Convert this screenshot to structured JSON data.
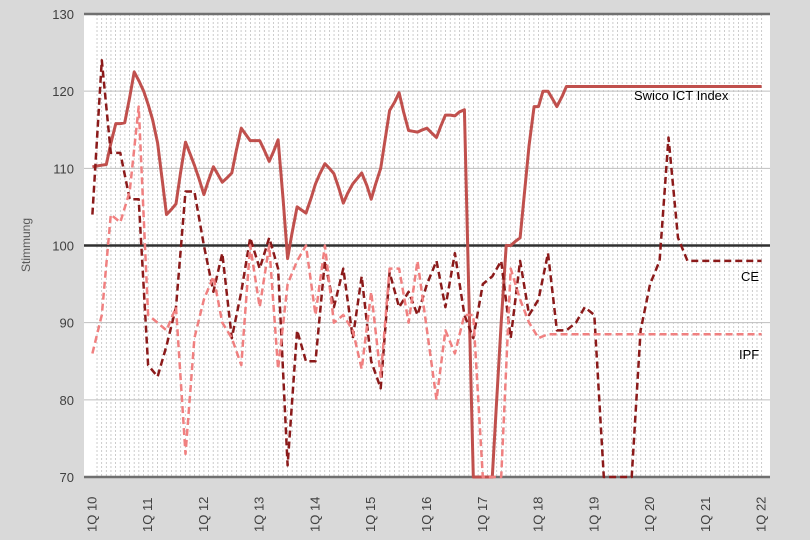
{
  "chart_data": {
    "type": "line",
    "ylabel": "Stimmung",
    "ylim": [
      70,
      130
    ],
    "yticks": [
      70,
      80,
      90,
      100,
      110,
      120,
      130
    ],
    "reference_line": 100,
    "grid": true,
    "x_tick_labels": [
      "1Q 10",
      "1Q 11",
      "1Q 12",
      "1Q 13",
      "1Q 14",
      "1Q 15",
      "1Q 16",
      "1Q 17",
      "1Q 18",
      "1Q 19",
      "1Q 20",
      "1Q 21",
      "1Q 22"
    ],
    "x_tick_values": [
      2010,
      2011,
      2012,
      2013,
      2014,
      2015,
      2016,
      2017,
      2018,
      2019,
      2020,
      2021,
      2022
    ],
    "series": [
      {
        "name": "Swico ICT Index",
        "color": "#c0504d",
        "style": "solid",
        "x": [
          2010.0,
          2010.08,
          2010.17,
          2010.25,
          2010.33,
          2010.42,
          2010.5,
          2010.58,
          2010.67,
          2010.75,
          2010.83,
          2010.92,
          2011.0,
          2011.08,
          2011.17,
          2011.25,
          2011.33,
          2011.42,
          2011.5,
          2011.58,
          2011.67,
          2011.75,
          2011.83,
          2011.92,
          2012.0,
          2012.08,
          2012.17,
          2012.25,
          2012.33,
          2012.42,
          2012.5,
          2012.58,
          2012.67,
          2012.75,
          2012.83,
          2012.92,
          2013.0,
          2013.08,
          2013.17,
          2013.25,
          2013.33,
          2013.42,
          2013.5,
          2013.58,
          2013.67,
          2013.75,
          2013.83,
          2013.92,
          2014.0,
          2014.08,
          2014.17,
          2014.25,
          2014.33,
          2014.42,
          2014.5,
          2014.58,
          2014.67,
          2014.75,
          2014.83,
          2014.92,
          2015.0,
          2015.08,
          2015.17,
          2015.25,
          2015.33,
          2015.42,
          2015.5,
          2015.58,
          2015.67,
          2015.75,
          2015.83,
          2015.92,
          2016.0,
          2016.08,
          2016.17,
          2016.25,
          2016.33,
          2016.42,
          2016.5,
          2016.58,
          2016.67,
          2016.75,
          2016.83,
          2016.92,
          2017.0,
          2017.08,
          2017.17,
          2017.25,
          2017.33,
          2017.42,
          2017.5,
          2017.58,
          2017.67,
          2017.75,
          2017.83,
          2017.92,
          2018.0,
          2018.08,
          2018.17,
          2018.25,
          2018.33,
          2018.42,
          2018.5,
          2018.58,
          2018.67,
          2018.75,
          2018.83,
          2018.92,
          2019.0,
          2019.08,
          2019.17,
          2019.25,
          2019.33,
          2019.42,
          2019.5,
          2019.58,
          2019.67,
          2019.75,
          2019.83,
          2019.92,
          2020.0,
          2020.08,
          2020.17,
          2020.25,
          2020.33,
          2020.42,
          2020.5,
          2020.58,
          2020.67,
          2020.75,
          2020.83,
          2020.92,
          2021.0,
          2021.08,
          2021.17,
          2021.25,
          2021.33,
          2021.42,
          2021.5,
          2021.58,
          2021.67,
          2021.75,
          2021.83,
          2021.92,
          2022.0
        ],
        "y": [
          110.2,
          110.3,
          110.4,
          110.5,
          113.2,
          115.8,
          115.8,
          115.9,
          119.2,
          122.5,
          121.4,
          120.0,
          118.3,
          116.3,
          113.3,
          108.6,
          104.0,
          104.7,
          105.4,
          109.4,
          113.4,
          111.9,
          110.4,
          108.5,
          106.6,
          108.4,
          110.2,
          109.2,
          108.2,
          108.8,
          109.4,
          112.3,
          115.2,
          114.4,
          113.6,
          113.6,
          113.6,
          112.4,
          110.9,
          112.2,
          113.7,
          106.0,
          98.3,
          101.6,
          105.0,
          104.6,
          104.2,
          106.1,
          108.0,
          109.3,
          110.6,
          110.0,
          109.3,
          107.4,
          105.5,
          106.8,
          108.0,
          108.7,
          109.4,
          107.8,
          106.0,
          108.0,
          110.0,
          113.8,
          117.5,
          118.6,
          119.8,
          117.3,
          114.9,
          114.8,
          114.7,
          115.0,
          115.2,
          114.6,
          114.0,
          115.5,
          116.9,
          116.9,
          116.8,
          117.3,
          117.6,
          93.8,
          70.0,
          70.0,
          70.0,
          70.0,
          70.0,
          80.0,
          90.0,
          100.0,
          100.0,
          100.5,
          101.0,
          107.0,
          113.0,
          118.0,
          118.0,
          120.0,
          120.0,
          119.0,
          118.0,
          119.3,
          120.6,
          120.6,
          120.6,
          120.6,
          120.6,
          120.6,
          120.6,
          120.6,
          120.6,
          120.6,
          120.6,
          120.6,
          120.6,
          120.6,
          120.6,
          120.6,
          120.6,
          120.6,
          120.6,
          120.6,
          120.6,
          120.6,
          120.6,
          120.6,
          120.6,
          120.6,
          120.6,
          120.6,
          120.6,
          120.6,
          120.6,
          120.6,
          120.6,
          120.6,
          120.6,
          120.6,
          120.6,
          120.6,
          120.6,
          120.6,
          120.6,
          120.6,
          120.6
        ]
      },
      {
        "name": "CE",
        "color": "#8b1a1a",
        "style": "dashed",
        "x": [
          2010.0,
          2010.17,
          2010.33,
          2010.5,
          2010.67,
          2010.83,
          2011.0,
          2011.17,
          2011.33,
          2011.5,
          2011.67,
          2011.83,
          2012.0,
          2012.17,
          2012.33,
          2012.5,
          2012.67,
          2012.83,
          2013.0,
          2013.17,
          2013.33,
          2013.5,
          2013.67,
          2013.83,
          2014.0,
          2014.17,
          2014.33,
          2014.5,
          2014.67,
          2014.83,
          2015.0,
          2015.17,
          2015.33,
          2015.5,
          2015.67,
          2015.83,
          2016.0,
          2016.17,
          2016.33,
          2016.5,
          2016.67,
          2016.83,
          2017.0,
          2017.17,
          2017.33,
          2017.5,
          2017.67,
          2017.83,
          2018.0,
          2018.17,
          2018.33,
          2018.5,
          2018.67,
          2018.83,
          2019.0,
          2019.17,
          2019.33,
          2019.5,
          2019.67,
          2019.83,
          2020.0,
          2020.17,
          2020.33,
          2020.5,
          2020.67,
          2020.83,
          2021.0,
          2021.17,
          2021.33,
          2021.5,
          2021.67,
          2021.83,
          2022.0
        ],
        "y": [
          104,
          124,
          112,
          112,
          106,
          106,
          84.5,
          83,
          87,
          92,
          107,
          107,
          100,
          94,
          99,
          88,
          94,
          101,
          97,
          101,
          97,
          71.5,
          89,
          85,
          85,
          98,
          92,
          97,
          88,
          96,
          85,
          81.5,
          96.5,
          92,
          94,
          91,
          95,
          98,
          92,
          99,
          91,
          88,
          95,
          96,
          98,
          88,
          98,
          91,
          93,
          99,
          89,
          89,
          90,
          92,
          91,
          70,
          70,
          70,
          70,
          89,
          95,
          98,
          114,
          101,
          98,
          98,
          98,
          98,
          98,
          98,
          98,
          98,
          98
        ]
      },
      {
        "name": "IPF",
        "color": "#f08080",
        "style": "dashed",
        "x": [
          2010.0,
          2010.17,
          2010.33,
          2010.5,
          2010.67,
          2010.83,
          2011.0,
          2011.17,
          2011.33,
          2011.5,
          2011.67,
          2011.83,
          2012.0,
          2012.17,
          2012.33,
          2012.5,
          2012.67,
          2012.83,
          2013.0,
          2013.17,
          2013.33,
          2013.5,
          2013.67,
          2013.83,
          2014.0,
          2014.17,
          2014.33,
          2014.5,
          2014.67,
          2014.83,
          2015.0,
          2015.17,
          2015.33,
          2015.5,
          2015.67,
          2015.83,
          2016.0,
          2016.17,
          2016.33,
          2016.5,
          2016.67,
          2016.83,
          2017.0,
          2017.17,
          2017.33,
          2017.5,
          2017.67,
          2017.83,
          2018.0,
          2018.17,
          2018.33,
          2018.5,
          2018.67,
          2018.83,
          2019.0,
          2019.17,
          2019.33,
          2019.5,
          2019.67,
          2019.83,
          2020.0,
          2020.17,
          2020.33,
          2020.5,
          2020.67,
          2020.83,
          2021.0,
          2021.17,
          2021.33,
          2021.5,
          2021.67,
          2021.83,
          2022.0
        ],
        "y": [
          86,
          91,
          104,
          103,
          107,
          118,
          91,
          90,
          89,
          92,
          73,
          88,
          93,
          96,
          90,
          88,
          84.5,
          100,
          92,
          100,
          84,
          95,
          98,
          100,
          91,
          100,
          90,
          91,
          89,
          84,
          94,
          83,
          97,
          97,
          90,
          98,
          89,
          80,
          89,
          86,
          91,
          91,
          70,
          70,
          70,
          97,
          93,
          90,
          88,
          88.5,
          88.5,
          88.5,
          88.5,
          88.5,
          88.5,
          88.5,
          88.5,
          88.5,
          88.5,
          88.5,
          88.5,
          88.5,
          88.5,
          88.5,
          88.5,
          88.5,
          88.5,
          88.5,
          88.5,
          88.5,
          88.5,
          88.5,
          88.5
        ]
      }
    ],
    "series_labels": [
      "Swico ICT Index",
      "CE",
      "IPF"
    ],
    "colors": {
      "background": "#d9d9d9",
      "plot": "#ffffff",
      "axis": "#404040",
      "grid": "#bfbfbf"
    }
  }
}
